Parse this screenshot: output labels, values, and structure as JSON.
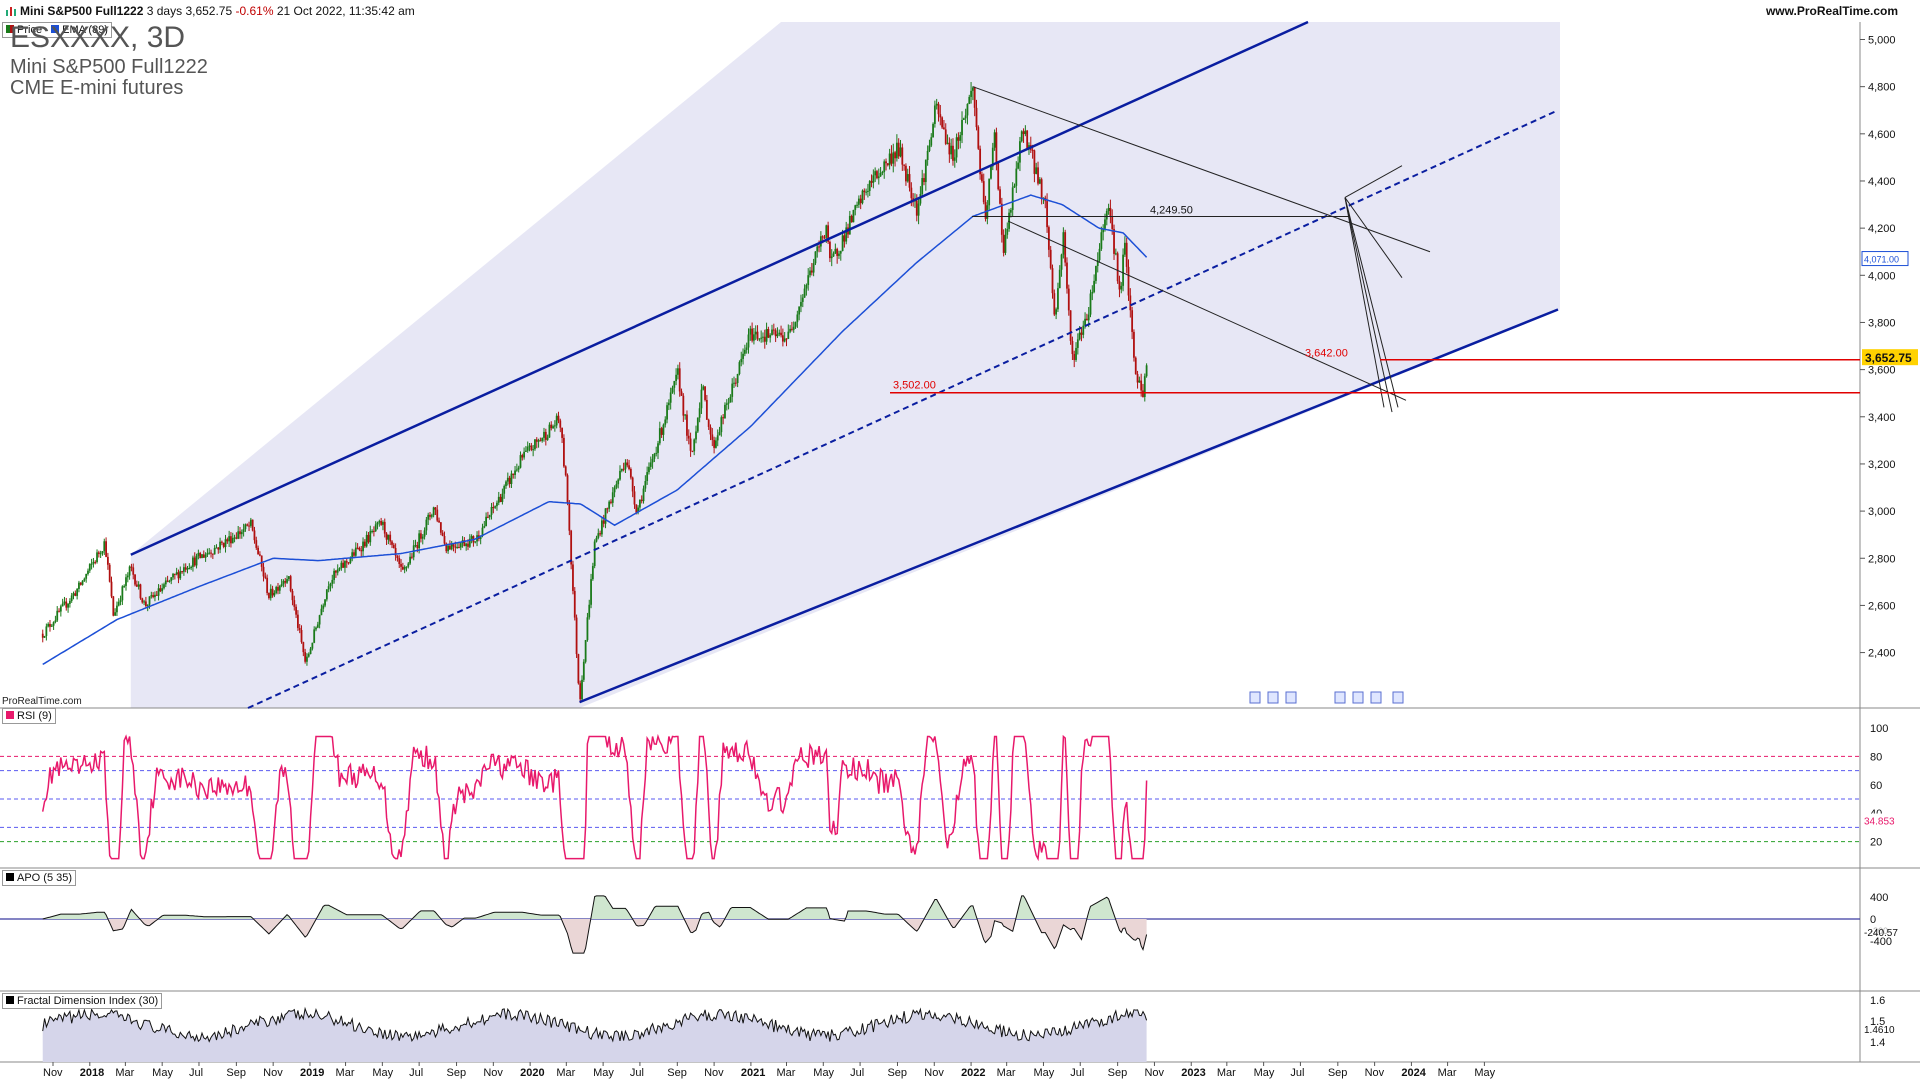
{
  "header": {
    "instrument": "Mini S&P500 Full1222",
    "period": "3 days",
    "last": "3,652.75",
    "change": "-0.61%",
    "datetime": "21 Oct 2022, 11:35:42 am",
    "url": "www.ProRealTime.com"
  },
  "legend": {
    "price_label": "Price",
    "ema_label": "EMA (89)",
    "symbol": "ESXXXX, 3D",
    "name": "Mini S&P500 Full1222",
    "exchange": "CME E-mini futures",
    "watermark": "ProRealTime.com"
  },
  "colors": {
    "up_candle": "#1a7a1a",
    "down_candle": "#b01010",
    "ema": "#1c4fd6",
    "channel": "#0a1ea0",
    "channel_fill": "#e7e7f5",
    "support": "#e00000",
    "rsi": "#e8196b",
    "apo_pos": "#cfe6cf",
    "apo_neg": "#ead6d6",
    "fdi_fill": "#d5d5ea",
    "price_tag": "#ffd200"
  },
  "indicators": {
    "rsi_label": "RSI (9)",
    "rsi_last": "34.853",
    "apo_label": "APO (5 35)",
    "apo_last": "-240.57",
    "fdi_label": "Fractal Dimension Index (30)",
    "fdi_last": "1.4610"
  },
  "chart_data": {
    "type": "line",
    "description_ref": "Candlestick price series, 3-day bars",
    "x_axis": {
      "labels": [
        "Nov",
        "2018",
        "Mar",
        "May",
        "Jul",
        "Sep",
        "Nov",
        "2019",
        "Mar",
        "May",
        "Jul",
        "Sep",
        "Nov",
        "2020",
        "Mar",
        "May",
        "Jul",
        "Sep",
        "Nov",
        "2021",
        "Mar",
        "May",
        "Jul",
        "Sep",
        "Nov",
        "2022",
        "Mar",
        "May",
        "Jul",
        "Sep",
        "Nov",
        "2023",
        "Mar",
        "May",
        "Jul",
        "Sep",
        "Nov",
        "2024",
        "Mar",
        "May"
      ],
      "bold": [
        "2018",
        "2019",
        "2020",
        "2021",
        "2022",
        "2023",
        "2024"
      ]
    },
    "price_axis": {
      "ticks": [
        2400,
        2600,
        2800,
        3000,
        3200,
        3400,
        3600,
        3800,
        4000,
        4200,
        4400,
        4600,
        4800,
        5000
      ],
      "tick_labels": [
        "2,400",
        "2,600",
        "2,800",
        "3,000",
        "3,200",
        "3,400",
        "3,600",
        "3,800",
        "4,000",
        "4,200",
        "4,400",
        "4,600",
        "4,800",
        "5,000"
      ]
    },
    "price_anchors": [
      [
        "2017-10-15",
        2480
      ],
      [
        "2017-12-15",
        2680
      ],
      [
        "2018-01-26",
        2870
      ],
      [
        "2018-02-09",
        2560
      ],
      [
        "2018-03-10",
        2760
      ],
      [
        "2018-04-02",
        2600
      ],
      [
        "2018-06-10",
        2770
      ],
      [
        "2018-08-01",
        2850
      ],
      [
        "2018-09-25",
        2940
      ],
      [
        "2018-10-25",
        2640
      ],
      [
        "2018-11-25",
        2730
      ],
      [
        "2018-12-25",
        2350
      ],
      [
        "2019-02-01",
        2700
      ],
      [
        "2019-04-30",
        2950
      ],
      [
        "2019-06-03",
        2730
      ],
      [
        "2019-07-26",
        3020
      ],
      [
        "2019-08-14",
        2850
      ],
      [
        "2019-10-03",
        2880
      ],
      [
        "2019-12-20",
        3230
      ],
      [
        "2020-02-19",
        3390
      ],
      [
        "2020-03-03",
        3050
      ],
      [
        "2020-03-23",
        2190
      ],
      [
        "2020-04-17",
        2860
      ],
      [
        "2020-06-08",
        3230
      ],
      [
        "2020-06-26",
        3000
      ],
      [
        "2020-09-02",
        3580
      ],
      [
        "2020-09-24",
        3220
      ],
      [
        "2020-10-12",
        3530
      ],
      [
        "2020-10-30",
        3270
      ],
      [
        "2020-12-31",
        3750
      ],
      [
        "2021-03-04",
        3740
      ],
      [
        "2021-05-07",
        4220
      ],
      [
        "2021-05-12",
        4040
      ],
      [
        "2021-07-12",
        4370
      ],
      [
        "2021-09-02",
        4540
      ],
      [
        "2021-10-04",
        4280
      ],
      [
        "2021-11-04",
        4710
      ],
      [
        "2021-12-01",
        4500
      ],
      [
        "2022-01-04",
        4800
      ],
      [
        "2022-01-24",
        4220
      ],
      [
        "2022-02-09",
        4590
      ],
      [
        "2022-02-24",
        4100
      ],
      [
        "2022-03-29",
        4630
      ],
      [
        "2022-05-04",
        4300
      ],
      [
        "2022-05-20",
        3810
      ],
      [
        "2022-06-03",
        4180
      ],
      [
        "2022-06-17",
        3640
      ],
      [
        "2022-07-15",
        3860
      ],
      [
        "2022-08-16",
        4330
      ],
      [
        "2022-09-06",
        3900
      ],
      [
        "2022-09-12",
        4150
      ],
      [
        "2022-09-30",
        3580
      ],
      [
        "2022-10-13",
        3500
      ],
      [
        "2022-10-21",
        3653
      ]
    ],
    "ema89_anchors": [
      [
        "2017-10-15",
        2350
      ],
      [
        "2018-02-15",
        2540
      ],
      [
        "2018-07-01",
        2680
      ],
      [
        "2018-11-01",
        2800
      ],
      [
        "2019-01-15",
        2790
      ],
      [
        "2019-06-01",
        2820
      ],
      [
        "2019-10-01",
        2880
      ],
      [
        "2020-02-01",
        3040
      ],
      [
        "2020-03-25",
        3030
      ],
      [
        "2020-05-20",
        2940
      ],
      [
        "2020-09-01",
        3090
      ],
      [
        "2021-01-01",
        3360
      ],
      [
        "2021-06-01",
        3760
      ],
      [
        "2021-10-01",
        4050
      ],
      [
        "2022-01-04",
        4250
      ],
      [
        "2022-04-10",
        4340
      ],
      [
        "2022-06-01",
        4300
      ],
      [
        "2022-08-01",
        4200
      ],
      [
        "2022-09-10",
        4180
      ],
      [
        "2022-10-21",
        4071
      ]
    ],
    "ema_last": "4,071.00",
    "levels": [
      {
        "value": 3642,
        "label": "3,642.00"
      },
      {
        "value": 3502,
        "label": "3,502.00"
      },
      {
        "value": 4249.5,
        "label": "4,249.50"
      }
    ],
    "last_price": "3,652.75",
    "rsi_axis": [
      20,
      40,
      60,
      80,
      100
    ],
    "rsi_lines": [
      80,
      70,
      50,
      30,
      20
    ],
    "apo_axis": {
      "ticks": [
        400,
        0,
        -400
      ],
      "labels": [
        "400",
        "0",
        "-400"
      ],
      "faint": "-200"
    },
    "fdi_axis": {
      "ticks": [
        1.6,
        1.5,
        1.4
      ],
      "labels": [
        "1.6",
        "1.5",
        "1.4"
      ]
    }
  }
}
